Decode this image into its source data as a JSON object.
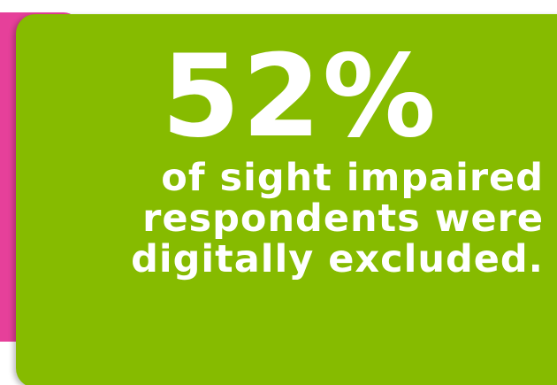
{
  "stat": {
    "value": "52%",
    "caption_lines": [
      "of sight impaired",
      "respondents were",
      "digitally excluded."
    ]
  },
  "colors": {
    "green_card": "#86bb00",
    "pink_card": "#e6409a",
    "text": "#ffffff"
  }
}
